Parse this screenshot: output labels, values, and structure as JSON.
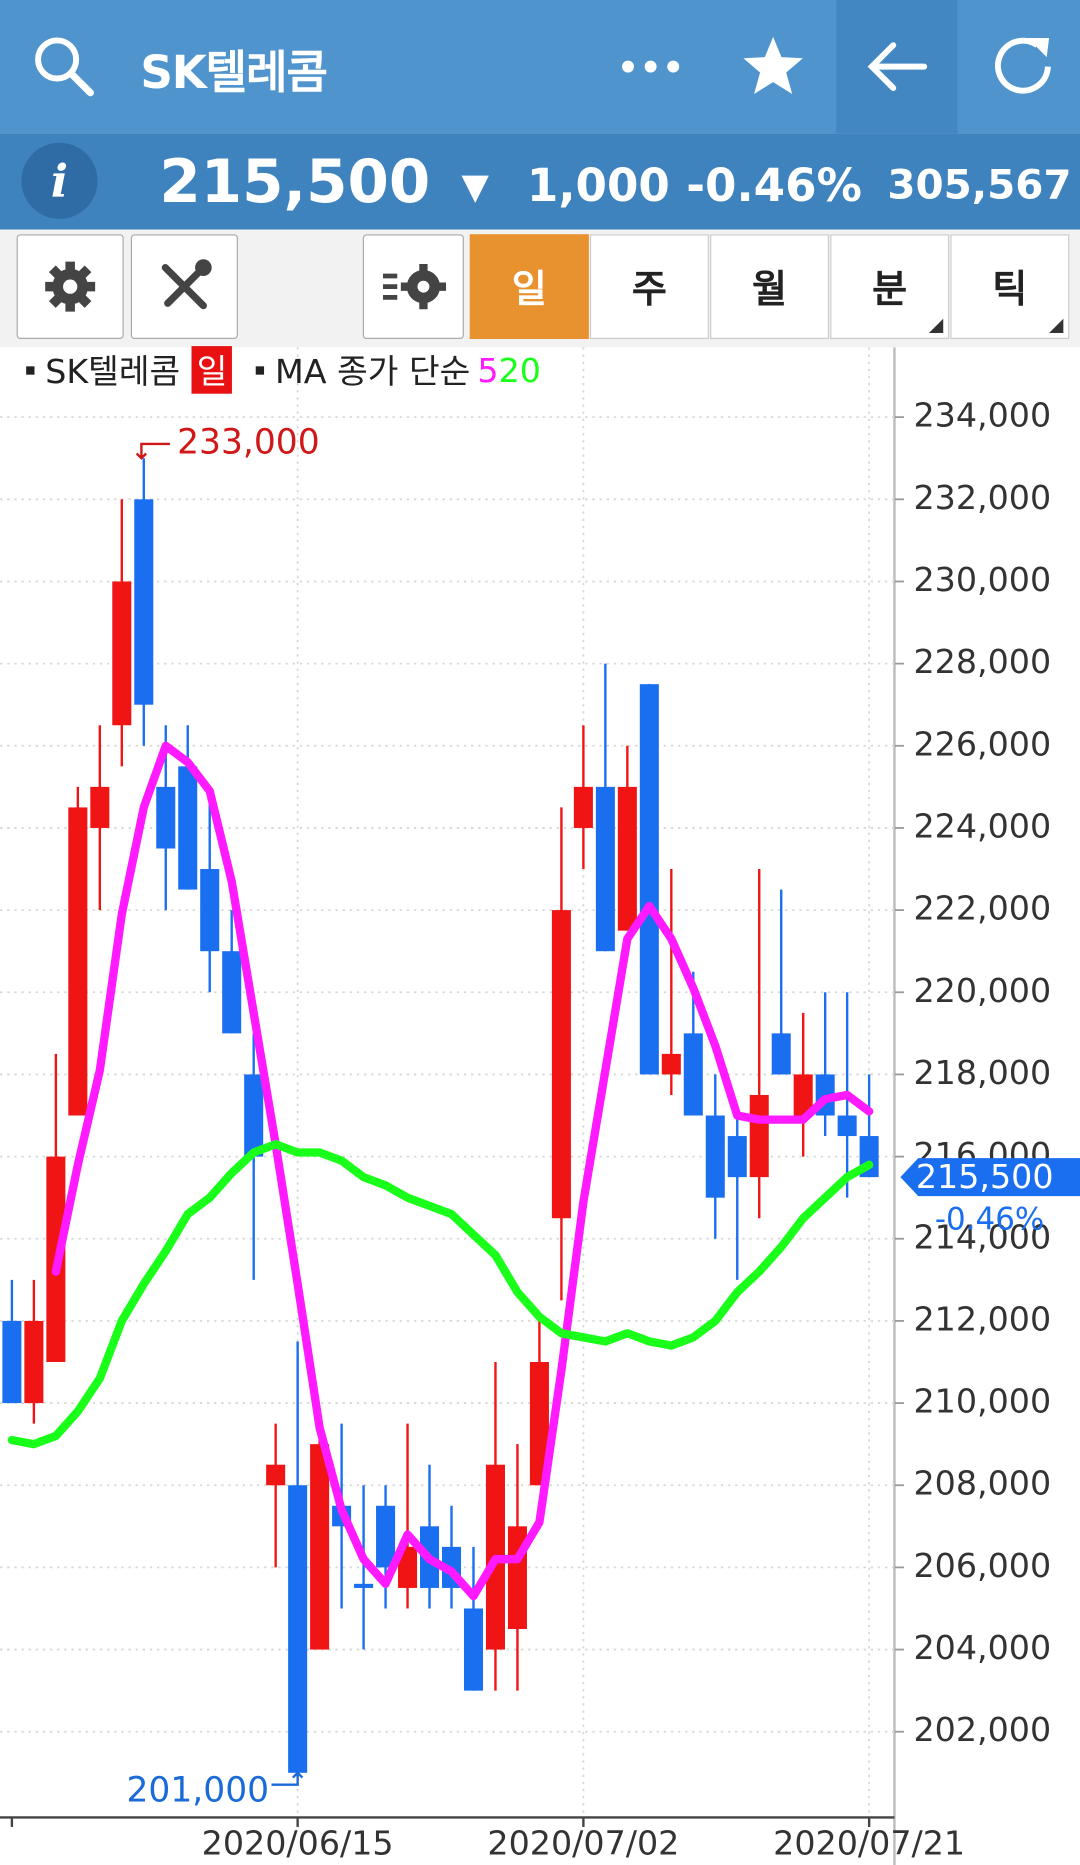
{
  "header": {
    "title": "SK텔레콤"
  },
  "quote": {
    "info": "i",
    "price": "215,500",
    "arrow": "▼",
    "change": "1,000",
    "rate": "-0.46%",
    "volume": "305,567"
  },
  "tabs": [
    "일",
    "주",
    "월",
    "분",
    "틱"
  ],
  "chart_data": {
    "type": "candlestick",
    "categories": [
      null,
      null,
      null,
      null,
      null,
      null,
      null,
      null,
      null,
      null,
      null,
      null,
      null,
      "2020/06/15",
      null,
      null,
      null,
      null,
      null,
      null,
      null,
      null,
      null,
      null,
      null,
      null,
      "2020/07/02",
      null,
      null,
      null,
      null,
      null,
      null,
      null,
      null,
      null,
      null,
      null,
      null,
      "2020/07/21"
    ],
    "series": [
      {
        "name": "SK텔레콤",
        "badge": "일",
        "up_color": "#f01414",
        "down_color": "#1a6ef0",
        "open": [
          212000,
          210000,
          211000,
          217000,
          224000,
          226500,
          232000,
          225000,
          225500,
          223000,
          221000,
          218000,
          208000,
          208000,
          204000,
          207500,
          205600,
          207500,
          205500,
          207000,
          206500,
          205000,
          204000,
          204500,
          208000,
          214500,
          224000,
          225000,
          221500,
          227500,
          218000,
          219000,
          217000,
          216500,
          215500,
          219000,
          217000,
          218000,
          217000,
          216500
        ],
        "high": [
          213000,
          213000,
          218500,
          225000,
          226500,
          232000,
          233000,
          226500,
          226500,
          225000,
          222000,
          219000,
          209500,
          211500,
          209500,
          209500,
          208000,
          208000,
          209500,
          208500,
          207500,
          206500,
          211000,
          209000,
          212000,
          224500,
          226500,
          228000,
          226000,
          227500,
          223000,
          220500,
          218000,
          217000,
          223000,
          222500,
          219500,
          220000,
          220000,
          218000
        ],
        "low": [
          210000,
          209500,
          211000,
          217000,
          222000,
          225500,
          226000,
          222000,
          222500,
          220000,
          219000,
          213000,
          206000,
          201000,
          204000,
          205000,
          204000,
          205000,
          205000,
          205000,
          205000,
          203000,
          203000,
          203000,
          208000,
          212500,
          223000,
          221000,
          221500,
          218000,
          217500,
          217000,
          214000,
          213000,
          214500,
          218000,
          216000,
          216500,
          215000,
          215500
        ],
        "close": [
          210000,
          212000,
          216000,
          224500,
          225000,
          230000,
          227000,
          223500,
          222500,
          221000,
          219000,
          216000,
          208500,
          201000,
          209000,
          207000,
          205500,
          206000,
          206500,
          205500,
          205500,
          203000,
          208500,
          207000,
          211000,
          222000,
          225000,
          221000,
          225000,
          218000,
          218500,
          217000,
          215000,
          215500,
          217500,
          218000,
          218000,
          217000,
          216500,
          215500
        ]
      }
    ],
    "lines_title": "MA 종가 단순",
    "lines": [
      {
        "name": "5",
        "color": "#ff1aff",
        "values": [
          null,
          null,
          213200,
          215800,
          218100,
          221900,
          224500,
          226000,
          225600,
          224900,
          222700,
          219500,
          216300,
          212900,
          209400,
          207400,
          206200,
          205600,
          206800,
          206200,
          205900,
          205300,
          206200,
          206200,
          207100,
          210800,
          214900,
          218100,
          221300,
          222100,
          221300,
          220100,
          218700,
          217000,
          216900,
          216900,
          216900,
          217400,
          217500,
          217100
        ]
      },
      {
        "name": "20",
        "color": "#1aff1a",
        "values": [
          209100,
          209000,
          209200,
          209800,
          210600,
          212000,
          212900,
          213700,
          214600,
          215000,
          215600,
          216100,
          216300,
          216100,
          216100,
          215900,
          215500,
          215300,
          215000,
          214800,
          214600,
          214100,
          213600,
          212700,
          212100,
          211700,
          211600,
          211500,
          211700,
          211500,
          211400,
          211600,
          212000,
          212700,
          213200,
          213800,
          214500,
          215000,
          215500,
          215800
        ]
      }
    ],
    "max_label": {
      "value": 233000,
      "label": "233,000"
    },
    "min_label": {
      "value": 201000,
      "label": "201,000"
    },
    "last_price": {
      "value": 215500,
      "label": "215,500"
    },
    "last_change": "-0.46%",
    "ylim": [
      200000,
      235700
    ],
    "yticks": [
      {
        "value": 202000,
        "label": "202,000"
      },
      {
        "value": 204000,
        "label": "204,000"
      },
      {
        "value": 206000,
        "label": "206,000"
      },
      {
        "value": 208000,
        "label": "208,000"
      },
      {
        "value": 210000,
        "label": "210,000"
      },
      {
        "value": 212000,
        "label": "212,000"
      },
      {
        "value": 214000,
        "label": "214,000"
      },
      {
        "value": 216000,
        "label": "216,000"
      },
      {
        "value": 218000,
        "label": "218,000"
      },
      {
        "value": 220000,
        "label": "220,000"
      },
      {
        "value": 222000,
        "label": "222,000"
      },
      {
        "value": 224000,
        "label": "224,000"
      },
      {
        "value": 226000,
        "label": "226,000"
      },
      {
        "value": 228000,
        "label": "228,000"
      },
      {
        "value": 230000,
        "label": "230,000"
      },
      {
        "value": 232000,
        "label": "232,000"
      },
      {
        "value": 234000,
        "label": "234,000"
      }
    ],
    "grid": true
  }
}
